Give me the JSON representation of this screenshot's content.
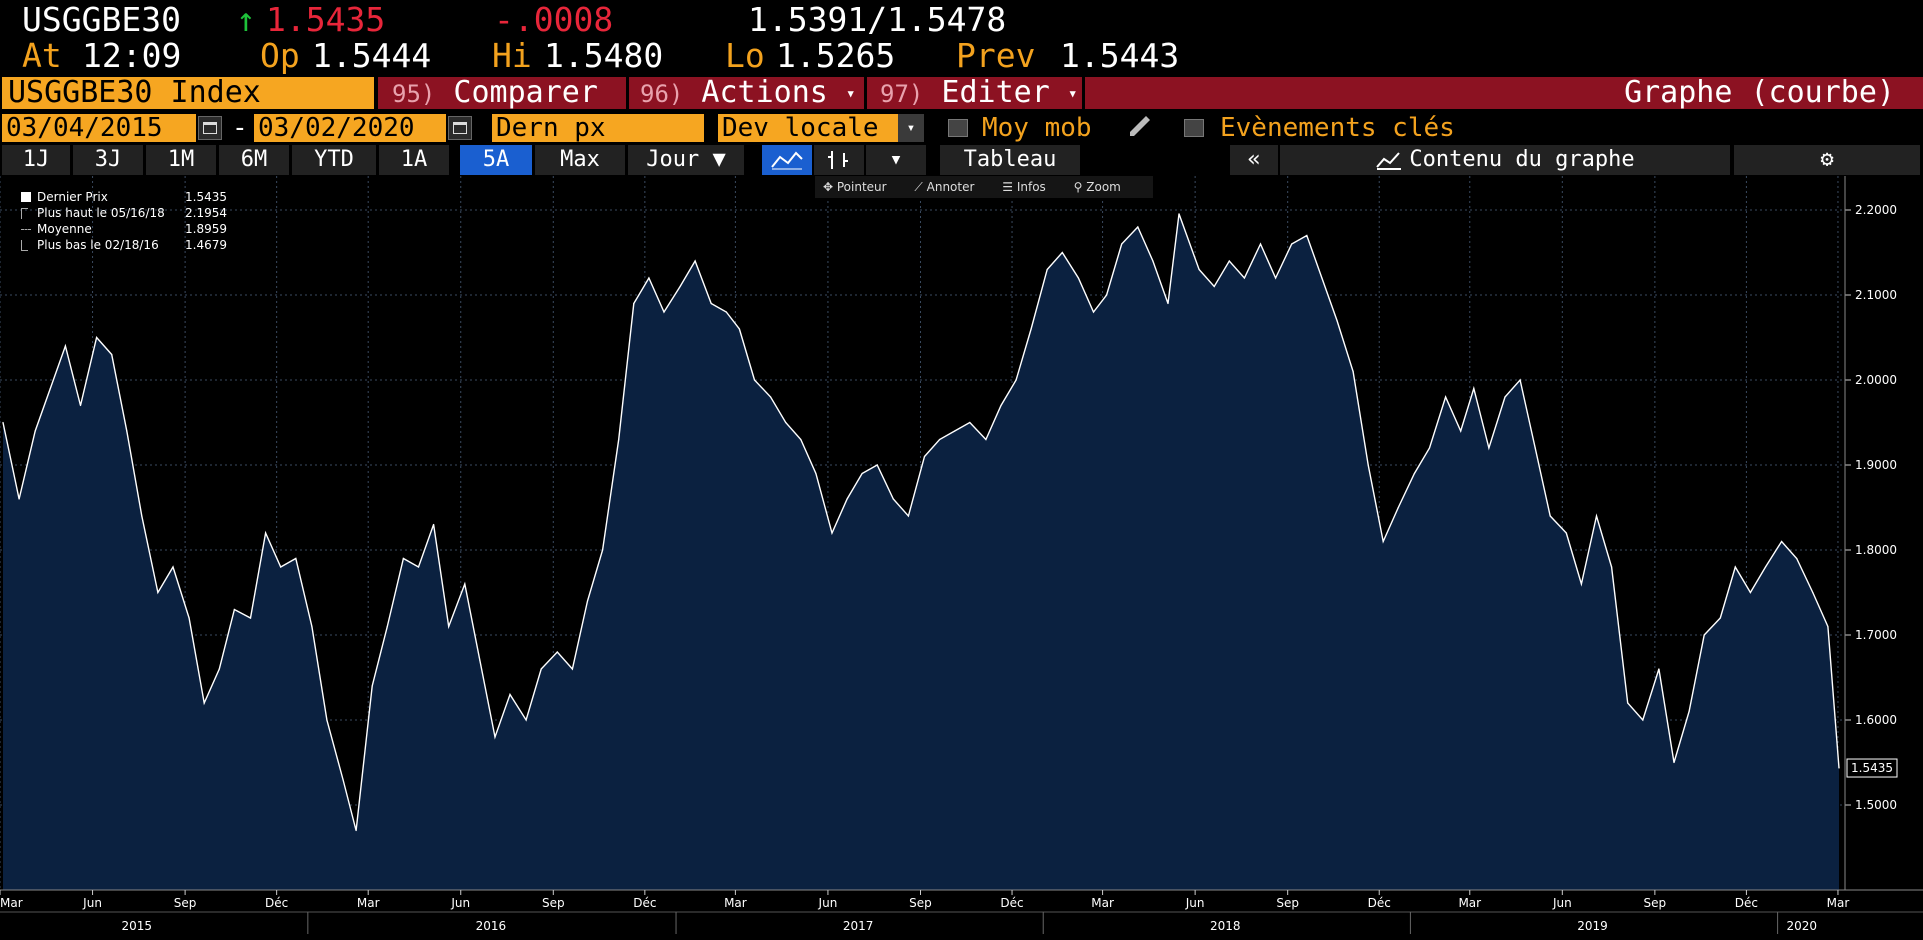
{
  "quote": {
    "ticker": "USGGBE30",
    "arrow": "↑",
    "last": "1.5435",
    "change": "-.0008",
    "bid_ask": "1.5391/1.5478",
    "at_label": "At",
    "at_time": "12:09",
    "op_label": "Op",
    "op": "1.5444",
    "hi_label": "Hi",
    "hi": "1.5480",
    "lo_label": "Lo",
    "lo": "1.5265",
    "prev_label": "Prev",
    "prev": "1.5443"
  },
  "menu": {
    "security": "USGGBE30 Index",
    "compare_num": "95)",
    "compare": "Comparer",
    "actions_num": "96)",
    "actions": "Actions",
    "edit_num": "97)",
    "edit": "Editer",
    "caret": "▾",
    "graph_title": "Graphe (courbe)"
  },
  "controls": {
    "start_date": "03/04/2015",
    "date_sep": "-",
    "end_date": "03/02/2020",
    "field": "Dern px",
    "currency": "Dev locale",
    "dropdown_caret": "▾",
    "moving_avg": "Moy mob",
    "key_events": "Evènements clés"
  },
  "toolbar": {
    "periods": [
      "1J",
      "3J",
      "1M",
      "6M",
      "YTD",
      "1A",
      "5A",
      "Max"
    ],
    "active_period": "5A",
    "frequency": "Jour ▼",
    "more_caret": "▾",
    "table": "Tableau",
    "collapse": "«",
    "content": "Contenu du graphe",
    "gear": "⚙"
  },
  "chart_tools": {
    "pointer": "Pointeur",
    "annotate": "Annoter",
    "info": "Infos",
    "zoom": "Zoom"
  },
  "legend": [
    {
      "label": "Dernier Prix",
      "value": "1.5435"
    },
    {
      "label": "Plus haut le 05/16/18",
      "value": "2.1954"
    },
    {
      "label": "Moyenne",
      "value": "1.8959"
    },
    {
      "label": "Plus bas le 02/18/16",
      "value": "1.4679"
    }
  ],
  "colors": {
    "line": "#ffffff",
    "area": "#0b2140",
    "grid": "#3a4a60",
    "amber": "#f3a21e",
    "red": "#e8263a"
  },
  "chart_data": {
    "type": "area",
    "title": "",
    "xlabel": "",
    "ylabel": "",
    "ylim": [
      1.4,
      2.24
    ],
    "xlim": [
      "2015-03-01",
      "2020-03-08"
    ],
    "y_ticks": [
      "1.5000",
      "1.6000",
      "1.7000",
      "1.8000",
      "1.9000",
      "2.0000",
      "2.1000",
      "2.2000"
    ],
    "y_tick_values": [
      1.5,
      1.6,
      1.7,
      1.8,
      1.9,
      2.0,
      2.1,
      2.2
    ],
    "x_month_ticks": [
      {
        "label": "Mar",
        "date": "2015-03-01"
      },
      {
        "label": "Jun",
        "date": "2015-06-01"
      },
      {
        "label": "Sep",
        "date": "2015-09-01"
      },
      {
        "label": "Déc",
        "date": "2015-12-01"
      },
      {
        "label": "Mar",
        "date": "2016-03-01"
      },
      {
        "label": "Jun",
        "date": "2016-06-01"
      },
      {
        "label": "Sep",
        "date": "2016-09-01"
      },
      {
        "label": "Déc",
        "date": "2016-12-01"
      },
      {
        "label": "Mar",
        "date": "2017-03-01"
      },
      {
        "label": "Jun",
        "date": "2017-06-01"
      },
      {
        "label": "Sep",
        "date": "2017-09-01"
      },
      {
        "label": "Déc",
        "date": "2017-12-01"
      },
      {
        "label": "Mar",
        "date": "2018-03-01"
      },
      {
        "label": "Jun",
        "date": "2018-06-01"
      },
      {
        "label": "Sep",
        "date": "2018-09-01"
      },
      {
        "label": "Déc",
        "date": "2018-12-01"
      },
      {
        "label": "Mar",
        "date": "2019-03-01"
      },
      {
        "label": "Jun",
        "date": "2019-06-01"
      },
      {
        "label": "Sep",
        "date": "2019-09-01"
      },
      {
        "label": "Déc",
        "date": "2019-12-01"
      },
      {
        "label": "Mar",
        "date": "2020-03-01"
      }
    ],
    "x_year_labels": [
      {
        "label": "2015",
        "date": "2015-07-15"
      },
      {
        "label": "2016",
        "date": "2016-07-01"
      },
      {
        "label": "2017",
        "date": "2017-07-01"
      },
      {
        "label": "2018",
        "date": "2018-07-01"
      },
      {
        "label": "2019",
        "date": "2019-07-01"
      },
      {
        "label": "2020",
        "date": "2020-01-25"
      }
    ],
    "x_year_boundaries": [
      "2016-01-01",
      "2017-01-01",
      "2018-01-01",
      "2019-01-01",
      "2020-01-01"
    ],
    "grid": true,
    "last_value_label": "1.5435",
    "series": [
      {
        "name": "Dernier Prix",
        "x": [
          "2015-03-04",
          "2015-03-20",
          "2015-04-05",
          "2015-04-20",
          "2015-05-05",
          "2015-05-20",
          "2015-06-05",
          "2015-06-20",
          "2015-07-05",
          "2015-07-20",
          "2015-08-05",
          "2015-08-20",
          "2015-09-05",
          "2015-09-20",
          "2015-10-05",
          "2015-10-20",
          "2015-11-05",
          "2015-11-20",
          "2015-12-05",
          "2015-12-20",
          "2016-01-05",
          "2016-01-20",
          "2016-02-05",
          "2016-02-18",
          "2016-03-05",
          "2016-03-20",
          "2016-04-05",
          "2016-04-20",
          "2016-05-05",
          "2016-05-20",
          "2016-06-05",
          "2016-06-20",
          "2016-07-05",
          "2016-07-20",
          "2016-08-05",
          "2016-08-20",
          "2016-09-05",
          "2016-09-20",
          "2016-10-05",
          "2016-10-20",
          "2016-11-05",
          "2016-11-20",
          "2016-12-05",
          "2016-12-20",
          "2017-01-05",
          "2017-01-20",
          "2017-02-05",
          "2017-02-20",
          "2017-03-05",
          "2017-03-20",
          "2017-04-05",
          "2017-04-20",
          "2017-05-05",
          "2017-05-20",
          "2017-06-05",
          "2017-06-20",
          "2017-07-05",
          "2017-07-20",
          "2017-08-05",
          "2017-08-20",
          "2017-09-05",
          "2017-09-20",
          "2017-10-05",
          "2017-10-20",
          "2017-11-05",
          "2017-11-20",
          "2017-12-05",
          "2017-12-20",
          "2018-01-05",
          "2018-01-20",
          "2018-02-05",
          "2018-02-20",
          "2018-03-05",
          "2018-03-20",
          "2018-04-05",
          "2018-04-20",
          "2018-05-05",
          "2018-05-16",
          "2018-06-05",
          "2018-06-20",
          "2018-07-05",
          "2018-07-20",
          "2018-08-05",
          "2018-08-20",
          "2018-09-05",
          "2018-09-20",
          "2018-10-05",
          "2018-10-20",
          "2018-11-05",
          "2018-11-20",
          "2018-12-05",
          "2018-12-20",
          "2019-01-05",
          "2019-01-20",
          "2019-02-05",
          "2019-02-20",
          "2019-03-05",
          "2019-03-20",
          "2019-04-05",
          "2019-04-20",
          "2019-05-05",
          "2019-05-20",
          "2019-06-05",
          "2019-06-20",
          "2019-07-05",
          "2019-07-20",
          "2019-08-05",
          "2019-08-20",
          "2019-09-05",
          "2019-09-20",
          "2019-10-05",
          "2019-10-20",
          "2019-11-05",
          "2019-11-20",
          "2019-12-05",
          "2019-12-20",
          "2020-01-05",
          "2020-01-20",
          "2020-02-05",
          "2020-02-20",
          "2020-03-02"
        ],
        "values": [
          1.95,
          1.86,
          1.94,
          1.99,
          2.04,
          1.97,
          2.05,
          2.03,
          1.94,
          1.84,
          1.75,
          1.78,
          1.72,
          1.62,
          1.66,
          1.73,
          1.72,
          1.82,
          1.78,
          1.79,
          1.71,
          1.6,
          1.53,
          1.47,
          1.64,
          1.71,
          1.79,
          1.78,
          1.83,
          1.71,
          1.76,
          1.67,
          1.58,
          1.63,
          1.6,
          1.66,
          1.68,
          1.66,
          1.74,
          1.8,
          1.93,
          2.09,
          2.12,
          2.08,
          2.11,
          2.14,
          2.09,
          2.08,
          2.06,
          2.0,
          1.98,
          1.95,
          1.93,
          1.89,
          1.82,
          1.86,
          1.89,
          1.9,
          1.86,
          1.84,
          1.91,
          1.93,
          1.94,
          1.95,
          1.93,
          1.97,
          2.0,
          2.06,
          2.13,
          2.15,
          2.12,
          2.08,
          2.1,
          2.16,
          2.18,
          2.14,
          2.09,
          2.1954,
          2.13,
          2.11,
          2.14,
          2.12,
          2.16,
          2.12,
          2.16,
          2.17,
          2.12,
          2.07,
          2.01,
          1.9,
          1.81,
          1.85,
          1.89,
          1.92,
          1.98,
          1.94,
          1.99,
          1.92,
          1.98,
          2.0,
          1.92,
          1.84,
          1.82,
          1.76,
          1.84,
          1.78,
          1.62,
          1.6,
          1.66,
          1.55,
          1.61,
          1.7,
          1.72,
          1.78,
          1.75,
          1.78,
          1.81,
          1.79,
          1.75,
          1.71,
          1.5435
        ]
      }
    ]
  }
}
